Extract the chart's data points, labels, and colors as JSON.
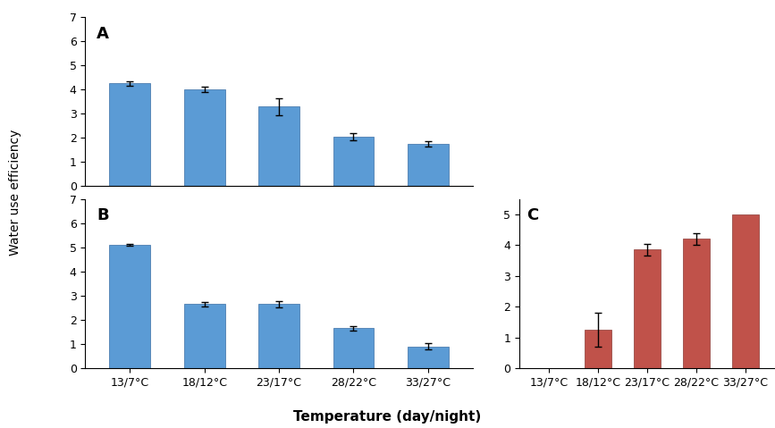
{
  "categories": [
    "13/7°C",
    "18/12°C",
    "23/17°C",
    "28/22°C",
    "33/27°C"
  ],
  "A_values": [
    4.25,
    4.0,
    3.3,
    2.05,
    1.75
  ],
  "A_errors": [
    0.1,
    0.12,
    0.35,
    0.15,
    0.1
  ],
  "B_values": [
    5.1,
    2.65,
    2.65,
    1.65,
    0.9
  ],
  "B_errors": [
    0.05,
    0.1,
    0.12,
    0.1,
    0.12
  ],
  "C_values": [
    0.0,
    1.25,
    3.85,
    4.2,
    5.0
  ],
  "C_errors": [
    0.0,
    0.55,
    0.2,
    0.2,
    0.0
  ],
  "blue_color": "#5b9bd5",
  "red_color": "#c0524a",
  "ylabel_AB": "Water use efficiency",
  "xlabel": "Temperature (day/night)",
  "label_A": "A",
  "label_B": "B",
  "label_C": "C",
  "ylim_AB": [
    0,
    7
  ],
  "ylim_C": [
    0,
    5.5
  ],
  "yticks_AB": [
    0,
    1,
    2,
    3,
    4,
    5,
    6,
    7
  ],
  "yticks_C": [
    0,
    1,
    2,
    3,
    4,
    5
  ],
  "background_color": "#ffffff"
}
